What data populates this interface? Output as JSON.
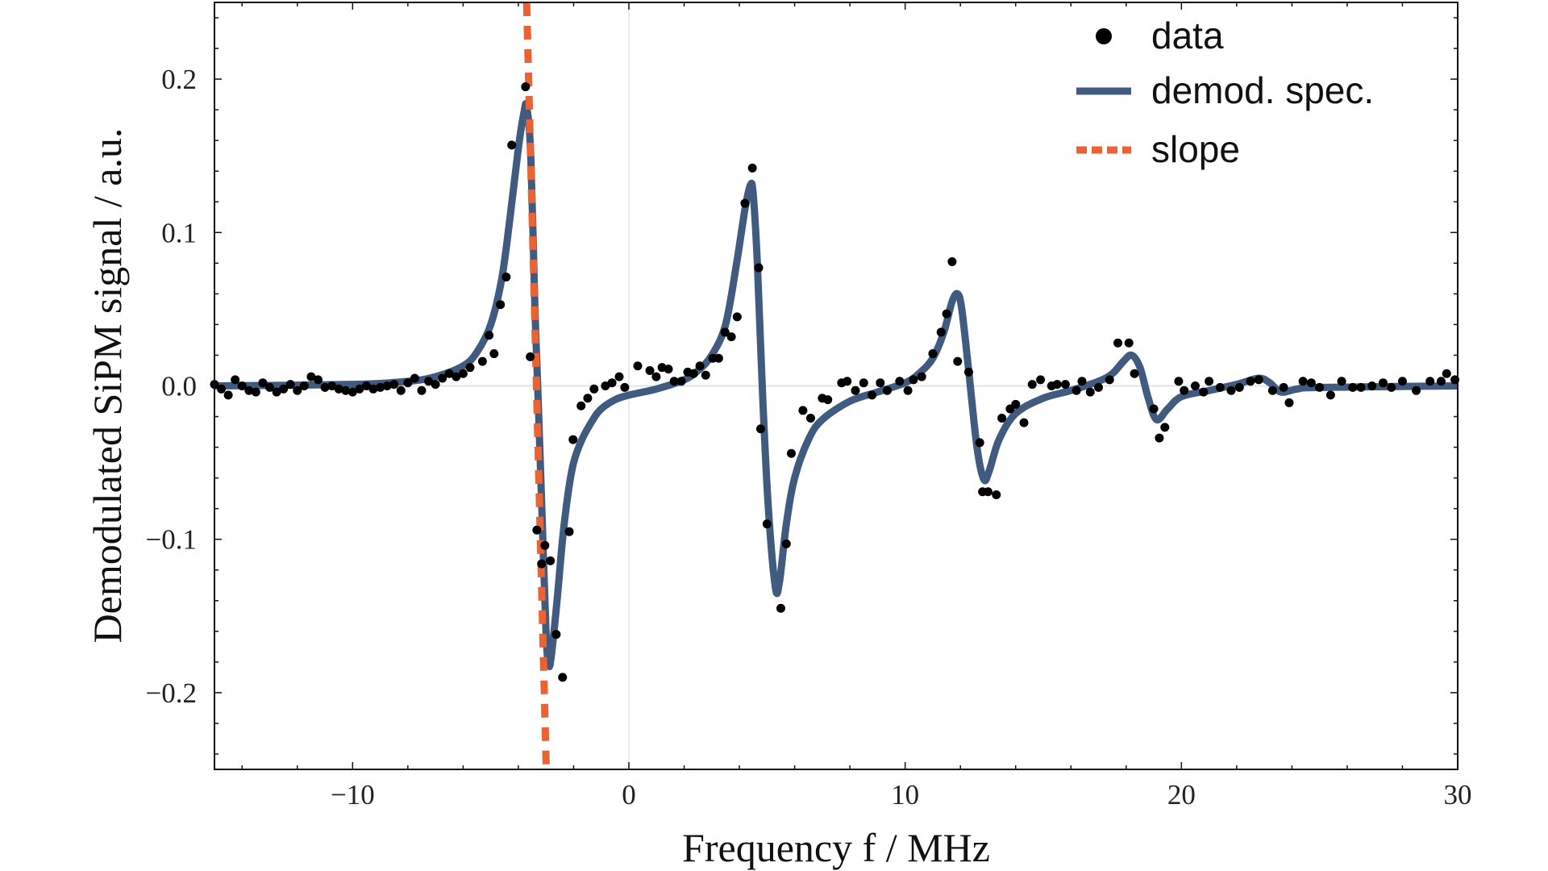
{
  "chart_data": {
    "type": "scatter",
    "xlabel": "Frequency f / MHz",
    "ylabel": "Demodulated SiPM signal / a.u.",
    "xlim": [
      -15,
      30
    ],
    "ylim": [
      -0.25,
      0.25
    ],
    "xticks": [
      -10,
      0,
      10,
      20,
      30
    ],
    "xtick_labels": [
      "−10",
      "0",
      "10",
      "20",
      "30"
    ],
    "yticks": [
      -0.2,
      -0.1,
      0.0,
      0.1,
      0.2
    ],
    "ytick_labels": [
      "−0.2",
      "−0.1",
      "0.0",
      "0.1",
      "0.2"
    ],
    "grid": "zero lines only",
    "legend_position": "top-right",
    "colors": {
      "data": "#000000",
      "fit": "#415a7f",
      "slope": "#eb6233",
      "zero_line": "#e3e3e3"
    },
    "series": [
      {
        "name": "data",
        "kind": "points",
        "x": [
          -15,
          -14.75,
          -14.5,
          -14.25,
          -14,
          -13.75,
          -13.5,
          -13.25,
          -13,
          -12.75,
          -12.5,
          -12.25,
          -12,
          -11.75,
          -11.5,
          -11.25,
          -11,
          -10.75,
          -10.5,
          -10.25,
          -10,
          -9.75,
          -9.5,
          -9.25,
          -9,
          -8.75,
          -8.5,
          -8.25,
          -8,
          -7.75,
          -7.5,
          -7.25,
          -7,
          -6.75,
          -6.5,
          -6.25,
          -6,
          -5.75,
          -5.3,
          -5.06,
          -4.88,
          -4.65,
          -4.44,
          -4.24,
          -3.74,
          -3.57,
          -3.33,
          -3.16,
          -3.04,
          -2.84,
          -2.63,
          -2.4,
          -2.16,
          -2.02,
          -1.73,
          -1.49,
          -1.26,
          -0.85,
          -0.61,
          -0.35,
          -0.15,
          0.32,
          0.76,
          0.99,
          1.2,
          1.43,
          1.64,
          1.9,
          2.13,
          2.34,
          2.57,
          2.78,
          3.04,
          3.25,
          3.48,
          3.71,
          3.92,
          4.2,
          4.47,
          4.7,
          4.77,
          5.0,
          5.5,
          5.7,
          5.88,
          6.3,
          6.58,
          7.0,
          7.2,
          7.7,
          7.9,
          8.2,
          8.5,
          8.8,
          9.1,
          9.35,
          9.8,
          10.1,
          10.3,
          10.6,
          11.0,
          11.3,
          11.5,
          11.7,
          11.9,
          12.3,
          12.7,
          12.8,
          13.0,
          13.3,
          13.5,
          13.8,
          14.0,
          14.3,
          14.6,
          14.9,
          15.3,
          15.5,
          15.8,
          16.2,
          16.4,
          16.7,
          17.0,
          17.4,
          17.7,
          18.1,
          18.3,
          19.0,
          19.2,
          19.4,
          19.9,
          20.1,
          20.5,
          20.8,
          21.0,
          21.4,
          21.8,
          22.1,
          22.5,
          22.8,
          23.3,
          23.7,
          23.9,
          24.4,
          24.7,
          25.0,
          25.4,
          25.8,
          26.2,
          26.5,
          26.9,
          27.3,
          27.6,
          28.0,
          28.5,
          29.0,
          29.4,
          29.6,
          29.9
        ],
        "y": [
          0.001,
          -0.002,
          -0.006,
          0.004,
          0.0,
          -0.003,
          -0.004,
          0.002,
          -0.001,
          -0.004,
          -0.002,
          0.001,
          -0.003,
          0.0,
          0.006,
          0.004,
          -0.001,
          0.0,
          -0.002,
          -0.003,
          -0.004,
          -0.002,
          0.0,
          -0.002,
          -0.001,
          0.0,
          0.001,
          -0.003,
          0.002,
          0.005,
          -0.003,
          0.003,
          0.001,
          0.005,
          0.008,
          0.006,
          0.008,
          0.012,
          0.016,
          0.033,
          0.021,
          0.053,
          0.071,
          0.157,
          0.195,
          0.019,
          -0.094,
          -0.116,
          -0.104,
          -0.114,
          -0.162,
          -0.19,
          -0.095,
          -0.035,
          -0.013,
          -0.008,
          -0.002,
          0.0,
          0.002,
          0.006,
          -0.001,
          0.013,
          0.01,
          0.006,
          0.012,
          0.011,
          0.003,
          0.003,
          0.009,
          0.008,
          0.013,
          0.007,
          0.018,
          0.018,
          0.035,
          0.032,
          0.045,
          0.119,
          0.142,
          0.077,
          -0.028,
          -0.09,
          -0.145,
          -0.103,
          -0.044,
          -0.016,
          -0.021,
          -0.008,
          -0.009,
          0.002,
          0.003,
          -0.003,
          0.002,
          -0.006,
          0.002,
          -0.003,
          0.003,
          -0.003,
          0.004,
          0.006,
          0.021,
          0.035,
          0.047,
          0.081,
          0.016,
          0.009,
          -0.037,
          -0.069,
          -0.069,
          -0.071,
          -0.021,
          -0.015,
          -0.012,
          -0.024,
          0.001,
          0.004,
          0.0,
          0.001,
          0.001,
          -0.003,
          0.003,
          -0.004,
          -0.001,
          0.004,
          0.028,
          0.028,
          0.008,
          -0.015,
          -0.034,
          -0.027,
          0.003,
          -0.003,
          0.0,
          -0.004,
          0.003,
          -0.001,
          -0.003,
          -0.001,
          0.003,
          0.004,
          -0.003,
          -0.001,
          -0.011,
          0.003,
          0.002,
          -0.001,
          -0.006,
          0.003,
          -0.001,
          -0.001,
          0.0,
          0.002,
          -0.001,
          0.003,
          -0.003,
          0.003,
          0.003,
          0.008,
          0.004
        ]
      },
      {
        "name": "demod. spec.",
        "kind": "line",
        "x": [
          -15,
          -10,
          -8,
          -7,
          -6,
          -5.5,
          -5,
          -4.6,
          -4.3,
          -4.0,
          -3.8,
          -3.7,
          -3.55,
          -3.4,
          -3.3,
          -3.15,
          -3.0,
          -2.9,
          -2.8,
          -2.6,
          -2.4,
          -2.2,
          -2.0,
          -1.7,
          -1.3,
          -1,
          -0.5,
          0,
          1,
          2,
          2.5,
          3,
          3.5,
          3.9,
          4.2,
          4.4,
          4.5,
          4.65,
          4.85,
          5.05,
          5.3,
          5.45,
          5.7,
          6.0,
          6.5,
          7,
          8,
          9,
          10,
          10.5,
          11,
          11.4,
          11.7,
          11.9,
          12.05,
          12.3,
          12.6,
          12.85,
          13.05,
          13.4,
          14,
          15,
          16,
          17,
          17.5,
          17.9,
          18.2,
          18.5,
          18.8,
          19.1,
          19.5,
          20,
          21,
          22,
          22.8,
          23.2,
          23.6,
          24.2,
          25,
          30
        ],
        "y": [
          0.0,
          0.001,
          0.003,
          0.006,
          0.013,
          0.022,
          0.04,
          0.07,
          0.11,
          0.155,
          0.178,
          0.182,
          0.15,
          0.05,
          0.0,
          -0.08,
          -0.16,
          -0.182,
          -0.175,
          -0.14,
          -0.1,
          -0.07,
          -0.05,
          -0.035,
          -0.022,
          -0.015,
          -0.009,
          -0.006,
          -0.002,
          0.004,
          0.01,
          0.02,
          0.04,
          0.08,
          0.115,
          0.131,
          0.125,
          0.08,
          -0.01,
          -0.08,
          -0.131,
          -0.128,
          -0.09,
          -0.06,
          -0.035,
          -0.022,
          -0.01,
          -0.004,
          0.002,
          0.008,
          0.018,
          0.035,
          0.055,
          0.06,
          0.05,
          0.01,
          -0.04,
          -0.061,
          -0.055,
          -0.035,
          -0.018,
          -0.008,
          -0.003,
          0.003,
          0.008,
          0.016,
          0.02,
          0.012,
          -0.008,
          -0.022,
          -0.015,
          -0.007,
          -0.003,
          0.001,
          0.005,
          0.002,
          -0.004,
          -0.002,
          -0.001,
          0.0
        ]
      },
      {
        "name": "slope",
        "kind": "dashed-line",
        "x": [
          -3.7,
          -2.99
        ],
        "y": [
          0.25,
          -0.25
        ]
      }
    ]
  }
}
